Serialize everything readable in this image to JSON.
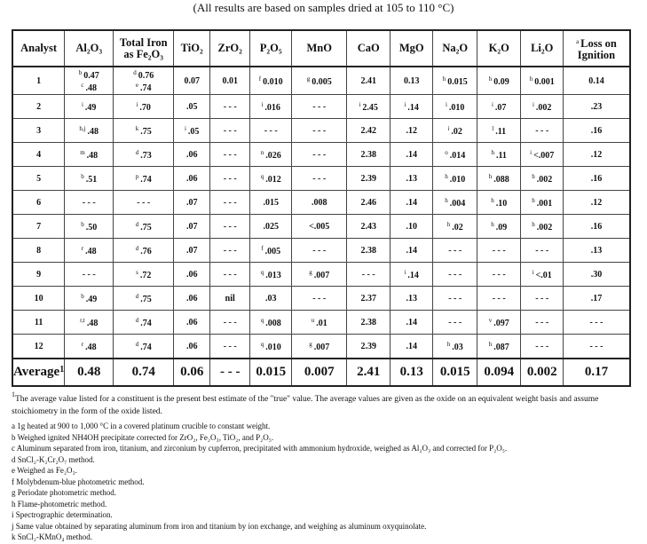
{
  "title": "(All results are based on samples dried at 105 to 110 °C)",
  "table": {
    "headers": [
      {
        "sup": "",
        "label": "Analyst"
      },
      {
        "sup": "",
        "label": "Al₂O₃"
      },
      {
        "sup": "",
        "label": "Total Iron as Fe₂O₃"
      },
      {
        "sup": "",
        "label": "TiO₂"
      },
      {
        "sup": "",
        "label": "ZrO₂"
      },
      {
        "sup": "",
        "label": "P₂O₅"
      },
      {
        "sup": "",
        "label": "MnO"
      },
      {
        "sup": "",
        "label": "CaO"
      },
      {
        "sup": "",
        "label": "MgO"
      },
      {
        "sup": "",
        "label": "Na₂O"
      },
      {
        "sup": "",
        "label": "K₂O"
      },
      {
        "sup": "",
        "label": "Li₂O"
      },
      {
        "sup": "a",
        "label": "Loss on Ignition"
      }
    ],
    "rows": [
      [
        [
          [
            "",
            "1"
          ]
        ],
        [
          [
            "b",
            "0.47"
          ],
          [
            "c",
            ".48"
          ]
        ],
        [
          [
            "d",
            "0.76"
          ],
          [
            "e",
            ".74"
          ]
        ],
        [
          [
            "",
            "0.07"
          ]
        ],
        [
          [
            "",
            "0.01"
          ]
        ],
        [
          [
            "f",
            "0.010"
          ]
        ],
        [
          [
            "g",
            "0.005"
          ]
        ],
        [
          [
            "",
            "2.41"
          ]
        ],
        [
          [
            "",
            "0.13"
          ]
        ],
        [
          [
            "h",
            "0.015"
          ]
        ],
        [
          [
            "h",
            "0.09"
          ]
        ],
        [
          [
            "h",
            "0.001"
          ]
        ],
        [
          [
            "",
            "0.14"
          ]
        ]
      ],
      [
        [
          [
            "",
            "2"
          ]
        ],
        [
          [
            "i",
            ".49"
          ]
        ],
        [
          [
            "i",
            ".70"
          ]
        ],
        [
          [
            "",
            ".05"
          ]
        ],
        [
          [
            "",
            "- - -"
          ]
        ],
        [
          [
            "i",
            ".016"
          ]
        ],
        [
          [
            "",
            "- - -"
          ]
        ],
        [
          [
            "i",
            "2.45"
          ]
        ],
        [
          [
            "i",
            ".14"
          ]
        ],
        [
          [
            "i",
            ".010"
          ]
        ],
        [
          [
            "i",
            ".07"
          ]
        ],
        [
          [
            "i",
            ".002"
          ]
        ],
        [
          [
            "",
            ".23"
          ]
        ]
      ],
      [
        [
          [
            "",
            "3"
          ]
        ],
        [
          [
            "h,j",
            ".48"
          ]
        ],
        [
          [
            "k",
            ".75"
          ]
        ],
        [
          [
            "i",
            ".05"
          ]
        ],
        [
          [
            "",
            "- - -"
          ]
        ],
        [
          [
            "",
            "- - -"
          ]
        ],
        [
          [
            "",
            "- - -"
          ]
        ],
        [
          [
            "",
            "2.42"
          ]
        ],
        [
          [
            "",
            ".12"
          ]
        ],
        [
          [
            "i",
            ".02"
          ]
        ],
        [
          [
            "l",
            ".11"
          ]
        ],
        [
          [
            "",
            "- - -"
          ]
        ],
        [
          [
            "",
            ".16"
          ]
        ]
      ],
      [
        [
          [
            "",
            "4"
          ]
        ],
        [
          [
            "m",
            ".48"
          ]
        ],
        [
          [
            "d",
            ".73"
          ]
        ],
        [
          [
            "",
            ".06"
          ]
        ],
        [
          [
            "",
            "- - -"
          ]
        ],
        [
          [
            "n",
            ".026"
          ]
        ],
        [
          [
            "",
            "- - -"
          ]
        ],
        [
          [
            "",
            "2.38"
          ]
        ],
        [
          [
            "",
            ".14"
          ]
        ],
        [
          [
            "o",
            ".014"
          ]
        ],
        [
          [
            "h",
            ".11"
          ]
        ],
        [
          [
            "i",
            "<.007"
          ]
        ],
        [
          [
            "",
            ".12"
          ]
        ]
      ],
      [
        [
          [
            "",
            "5"
          ]
        ],
        [
          [
            "b",
            ".51"
          ]
        ],
        [
          [
            "p",
            ".74"
          ]
        ],
        [
          [
            "",
            ".06"
          ]
        ],
        [
          [
            "",
            "- - -"
          ]
        ],
        [
          [
            "q",
            ".012"
          ]
        ],
        [
          [
            "",
            "- - -"
          ]
        ],
        [
          [
            "",
            "2.39"
          ]
        ],
        [
          [
            "",
            ".13"
          ]
        ],
        [
          [
            "h",
            ".010"
          ]
        ],
        [
          [
            "h",
            ".088"
          ]
        ],
        [
          [
            "h",
            ".002"
          ]
        ],
        [
          [
            "",
            ".16"
          ]
        ]
      ],
      [
        [
          [
            "",
            "6"
          ]
        ],
        [
          [
            "",
            "- - -"
          ]
        ],
        [
          [
            "",
            "- - -"
          ]
        ],
        [
          [
            "",
            ".07"
          ]
        ],
        [
          [
            "",
            "- - -"
          ]
        ],
        [
          [
            "",
            ".015"
          ]
        ],
        [
          [
            "",
            ".008"
          ]
        ],
        [
          [
            "",
            "2.46"
          ]
        ],
        [
          [
            "",
            ".14"
          ]
        ],
        [
          [
            "h",
            ".004"
          ]
        ],
        [
          [
            "h",
            ".10"
          ]
        ],
        [
          [
            "h",
            ".001"
          ]
        ],
        [
          [
            "",
            ".12"
          ]
        ]
      ],
      [
        [
          [
            "",
            "7"
          ]
        ],
        [
          [
            "b",
            ".50"
          ]
        ],
        [
          [
            "d",
            ".75"
          ]
        ],
        [
          [
            "",
            ".07"
          ]
        ],
        [
          [
            "",
            "- - -"
          ]
        ],
        [
          [
            "",
            ".025"
          ]
        ],
        [
          [
            "",
            "<.005"
          ]
        ],
        [
          [
            "",
            "2.43"
          ]
        ],
        [
          [
            "",
            ".10"
          ]
        ],
        [
          [
            "h",
            ".02"
          ]
        ],
        [
          [
            "h",
            ".09"
          ]
        ],
        [
          [
            "h",
            ".002"
          ]
        ],
        [
          [
            "",
            ".16"
          ]
        ]
      ],
      [
        [
          [
            "",
            "8"
          ]
        ],
        [
          [
            "r",
            ".48"
          ]
        ],
        [
          [
            "d",
            ".76"
          ]
        ],
        [
          [
            "",
            ".07"
          ]
        ],
        [
          [
            "",
            "- - -"
          ]
        ],
        [
          [
            "f",
            ".005"
          ]
        ],
        [
          [
            "",
            "- - -"
          ]
        ],
        [
          [
            "",
            "2.38"
          ]
        ],
        [
          [
            "",
            ".14"
          ]
        ],
        [
          [
            "",
            "- - -"
          ]
        ],
        [
          [
            "",
            "- - -"
          ]
        ],
        [
          [
            "",
            "- - -"
          ]
        ],
        [
          [
            "",
            ".13"
          ]
        ]
      ],
      [
        [
          [
            "",
            "9"
          ]
        ],
        [
          [
            "",
            "- - -"
          ]
        ],
        [
          [
            "s",
            ".72"
          ]
        ],
        [
          [
            "",
            ".06"
          ]
        ],
        [
          [
            "",
            "- - -"
          ]
        ],
        [
          [
            "q",
            ".013"
          ]
        ],
        [
          [
            "g",
            ".007"
          ]
        ],
        [
          [
            "",
            "- - -"
          ]
        ],
        [
          [
            "i",
            ".14"
          ]
        ],
        [
          [
            "",
            "- - -"
          ]
        ],
        [
          [
            "",
            "- - -"
          ]
        ],
        [
          [
            "i",
            "<.01"
          ]
        ],
        [
          [
            "",
            ".30"
          ]
        ]
      ],
      [
        [
          [
            "",
            "10"
          ]
        ],
        [
          [
            "b",
            ".49"
          ]
        ],
        [
          [
            "d",
            ".75"
          ]
        ],
        [
          [
            "",
            ".06"
          ]
        ],
        [
          [
            "",
            "nil"
          ]
        ],
        [
          [
            "",
            ".03"
          ]
        ],
        [
          [
            "",
            "- - -"
          ]
        ],
        [
          [
            "",
            "2.37"
          ]
        ],
        [
          [
            "",
            ".13"
          ]
        ],
        [
          [
            "",
            "- - -"
          ]
        ],
        [
          [
            "",
            "- - -"
          ]
        ],
        [
          [
            "",
            "- - -"
          ]
        ],
        [
          [
            "",
            ".17"
          ]
        ]
      ],
      [
        [
          [
            "",
            "11"
          ]
        ],
        [
          [
            "r,t",
            ".48"
          ]
        ],
        [
          [
            "d",
            ".74"
          ]
        ],
        [
          [
            "",
            ".06"
          ]
        ],
        [
          [
            "",
            "- - -"
          ]
        ],
        [
          [
            "q",
            ".008"
          ]
        ],
        [
          [
            "u",
            ".01"
          ]
        ],
        [
          [
            "",
            "2.38"
          ]
        ],
        [
          [
            "",
            ".14"
          ]
        ],
        [
          [
            "",
            "- - -"
          ]
        ],
        [
          [
            "v",
            ".097"
          ]
        ],
        [
          [
            "",
            "- - -"
          ]
        ],
        [
          [
            "",
            "- - -"
          ]
        ]
      ],
      [
        [
          [
            "",
            "12"
          ]
        ],
        [
          [
            "r",
            ".48"
          ]
        ],
        [
          [
            "d",
            ".74"
          ]
        ],
        [
          [
            "",
            ".06"
          ]
        ],
        [
          [
            "",
            "- - -"
          ]
        ],
        [
          [
            "q",
            ".010"
          ]
        ],
        [
          [
            "g",
            ".007"
          ]
        ],
        [
          [
            "",
            "2.39"
          ]
        ],
        [
          [
            "",
            ".14"
          ]
        ],
        [
          [
            "h",
            ".03"
          ]
        ],
        [
          [
            "h",
            ".087"
          ]
        ],
        [
          [
            "",
            "- - -"
          ]
        ],
        [
          [
            "",
            "- - -"
          ]
        ]
      ]
    ],
    "average": {
      "label": "Average",
      "label_sup": "1",
      "values": [
        "0.48",
        "0.74",
        "0.06",
        "- - -",
        "0.015",
        "0.007",
        "2.41",
        "0.13",
        "0.015",
        "0.094",
        "0.002",
        "0.17"
      ]
    }
  },
  "note1": {
    "sup": "1",
    "text": "The average value listed for a constituent is the present best estimate of the \"true\" value.  The average values are given as the oxide on an equivalent weight basis and assume stoichiometry in the form of the oxide listed."
  },
  "footnotes": [
    "a 1g heated at 900 to 1,000 °C in a covered platinum crucible to constant weight.",
    "b Weighed ignited NH4OH precipitate corrected for ZrO₂, Fe₂O₃, TiO₂, and P₂O₅.",
    "c Aluminum separated from iron, titanium, and zirconium by cupferron, precipitated with ammonium hydroxide, weighed as Al₂O₃ and corrected for P₂O₅.",
    "d SnCl₂-K₂Cr₂O₇ method.",
    "e Weighed as Fe₂O₃.",
    "f  Molybdenum-blue photometric method.",
    "g  Periodate photometric method.",
    "h  Flame-photometric method.",
    "i  Spectrographic determination.",
    "j  Same value obtained by separating aluminum from iron and titanium by ion exchange, and weighing as aluminum oxyquinolate.",
    "k  SnCl₂-KMnO₄ method."
  ]
}
